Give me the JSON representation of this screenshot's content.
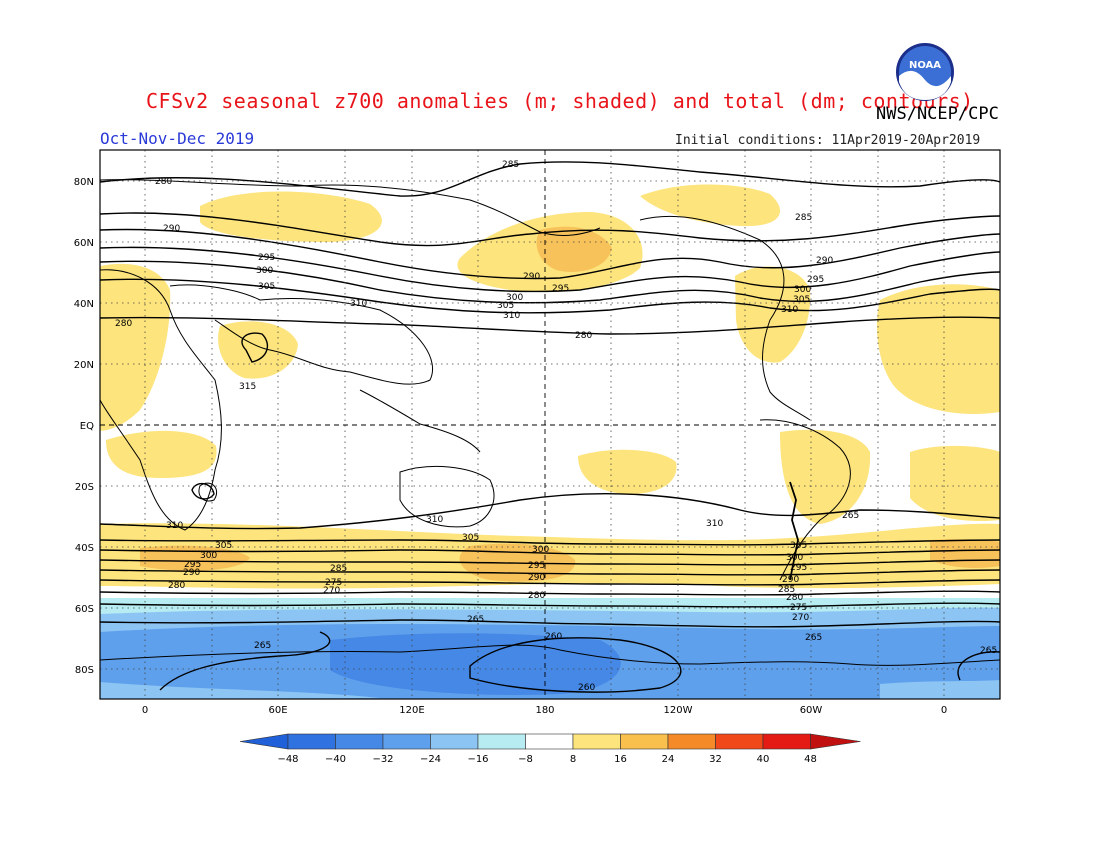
{
  "header": {
    "title": "CFSv2 seasonal z700 anomalies (m; shaded) and total (dm; contours)",
    "agency": "NWS/NCEP/CPC",
    "season": "Oct-Nov-Dec 2019",
    "initial_conditions": "Initial conditions: 11Apr2019-20Apr2019",
    "logo_text": "NOAA"
  },
  "axes": {
    "lat_labels": [
      "80N",
      "60N",
      "40N",
      "20N",
      "EQ",
      "20S",
      "40S",
      "60S",
      "80S"
    ],
    "lon_labels": [
      "0",
      "60E",
      "120E",
      "180",
      "120W",
      "60W",
      "0"
    ]
  },
  "colorbar": {
    "ticks": [
      "-48",
      "-40",
      "-32",
      "-24",
      "-16",
      "-8",
      "8",
      "16",
      "24",
      "32",
      "40",
      "48"
    ],
    "colors": [
      "#2060d8",
      "#2f72e0",
      "#4588e6",
      "#5fa0ec",
      "#8cc5f4",
      "#b6ecf2",
      "#ffffff",
      "#fde47c",
      "#f9c04e",
      "#f48a28",
      "#f04818",
      "#e41a14",
      "#c01010"
    ]
  },
  "shading_colors": {
    "light_yellow": "#fde47c",
    "orange_yellow": "#f7c25a",
    "light_cyan": "#b6ecf2",
    "light_blue": "#8cc5f4",
    "blue": "#5fa0ec",
    "deep_blue": "#4588e6"
  },
  "contour_labels": {
    "nh": [
      "280",
      "290",
      "295",
      "300",
      "305",
      "310",
      "280",
      "285",
      "290",
      "295",
      "300",
      "305",
      "310",
      "280",
      "285",
      "290",
      "295",
      "300",
      "305",
      "310",
      "315"
    ],
    "sh": [
      "310",
      "305",
      "300",
      "295",
      "290",
      "285",
      "280",
      "275",
      "270",
      "265",
      "260",
      "260",
      "265",
      "265",
      "265",
      "310",
      "305",
      "300",
      "295",
      "290",
      "280",
      "310",
      "305",
      "300",
      "295",
      "290",
      "285",
      "280",
      "275",
      "270",
      "265"
    ]
  }
}
